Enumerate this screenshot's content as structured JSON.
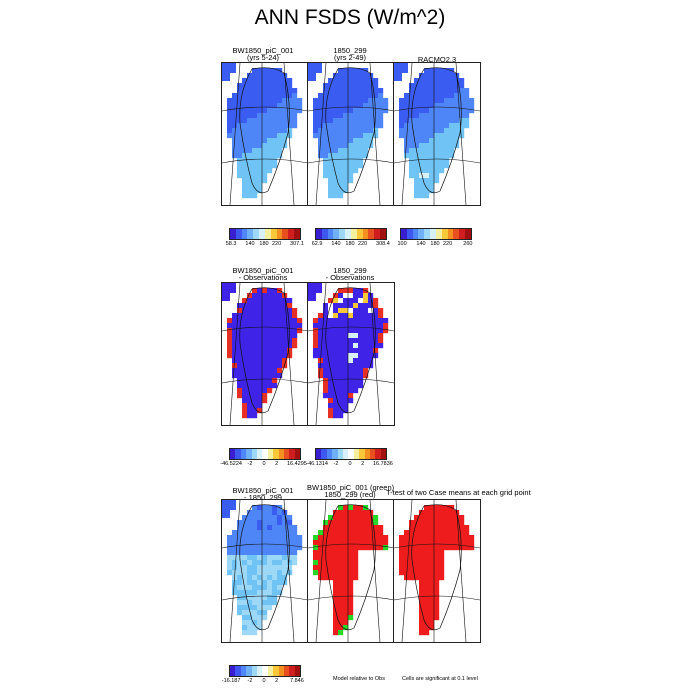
{
  "title": "ANN FSDS (W/m^2)",
  "colors": {
    "ocean": "#ffffff",
    "ice_low": "#3a5cf0",
    "ice_mid": "#4f86f7",
    "ice_high": "#6fc4f5",
    "diff_neg": "#3f23e6",
    "diff_pos": "#e63026",
    "sig": "#ee1c1c",
    "sig_green": "#28d628"
  },
  "rows": [
    {
      "panels": [
        {
          "title_lines": [
            "BW1850_piC_001",
            "(yrs 5-24)"
          ]
        },
        {
          "title_lines": [
            "1850_299",
            "(yrs 2-49)"
          ]
        },
        {
          "title_lines": [
            "RACMO2.3"
          ]
        }
      ],
      "colorbars": [
        {
          "ticks": [
            "58.3",
            "140",
            "180",
            "220",
            "307.1"
          ],
          "colors": [
            "#3a1fd0",
            "#3d57f0",
            "#4f86f7",
            "#6fb0f7",
            "#9ed8f7",
            "#d8f0f8",
            "#f4f0a0",
            "#f8c838",
            "#f39020",
            "#e85020",
            "#d01e1e",
            "#a01010"
          ]
        },
        {
          "ticks": [
            "62.9",
            "140",
            "180",
            "220",
            "308.4"
          ],
          "colors": [
            "#3a1fd0",
            "#3d57f0",
            "#4f86f7",
            "#6fb0f7",
            "#9ed8f7",
            "#d8f0f8",
            "#f4f0a0",
            "#f8c838",
            "#f39020",
            "#e85020",
            "#d01e1e",
            "#a01010"
          ]
        },
        {
          "ticks": [
            "100",
            "140",
            "180",
            "220",
            "260"
          ],
          "colors": [
            "#3a1fd0",
            "#3d57f0",
            "#4f86f7",
            "#6fb0f7",
            "#9ed8f7",
            "#d8f0f8",
            "#f4f0a0",
            "#f8c838",
            "#f39020",
            "#e85020",
            "#d01e1e",
            "#a01010"
          ]
        }
      ]
    },
    {
      "panels": [
        {
          "title_lines": [
            "BW1850_piC_001",
            "- Observations"
          ]
        },
        {
          "title_lines": [
            "1850_299",
            "- Observations"
          ]
        }
      ],
      "colorbars": [
        {
          "ticks": [
            "-46.5224",
            "-2",
            "0",
            "2",
            "16.4295"
          ],
          "colors": [
            "#3a1fd0",
            "#3d57f0",
            "#4f86f7",
            "#6fb0f7",
            "#9ed8f7",
            "#d8f0f8",
            "#ffffff",
            "#f4f0a0",
            "#f8c838",
            "#f39020",
            "#e85020",
            "#d01e1e",
            "#a01010"
          ]
        },
        {
          "ticks": [
            "-46.1314",
            "-2",
            "0",
            "2",
            "16.7836"
          ],
          "colors": [
            "#3a1fd0",
            "#3d57f0",
            "#4f86f7",
            "#6fb0f7",
            "#9ed8f7",
            "#d8f0f8",
            "#ffffff",
            "#f4f0a0",
            "#f8c838",
            "#f39020",
            "#e85020",
            "#d01e1e",
            "#a01010"
          ]
        }
      ]
    },
    {
      "panels": [
        {
          "title_lines": [
            "BW1850_piC_001",
            "- 1850_299"
          ]
        },
        {
          "title_lines": [
            "BW1850_piC_001 (green)",
            "1850_299 (red)"
          ]
        },
        {
          "title_lines": [
            "T-test of two Case means at each grid point"
          ]
        }
      ],
      "colorbars": [
        {
          "ticks": [
            "-16.187",
            "-2",
            "0",
            "2",
            "7.846"
          ],
          "colors": [
            "#3a1fd0",
            "#3d57f0",
            "#4f86f7",
            "#6fb0f7",
            "#9ed8f7",
            "#d8f0f8",
            "#ffffff",
            "#f4f0a0",
            "#f8c838",
            "#f39020",
            "#e85020",
            "#d01e1e",
            "#a01010"
          ]
        }
      ],
      "notes": [
        "Model relative to Obs",
        "Cells are significant at 0.1 level"
      ]
    }
  ]
}
